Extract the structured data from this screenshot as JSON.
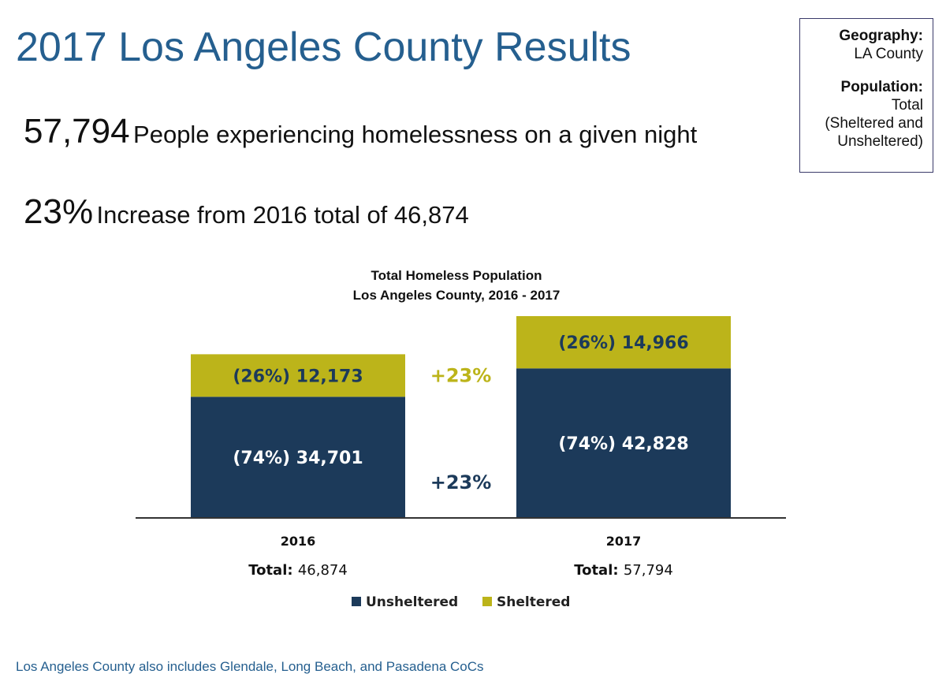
{
  "title": "2017 Los Angeles County Results",
  "stats": [
    {
      "value": "57,794",
      "text": "People experiencing homelessness on a given night"
    },
    {
      "value": "23%",
      "text": "Increase from 2016 total of 46,874"
    }
  ],
  "info_box": {
    "geography_label": "Geography:",
    "geography_value": "LA County",
    "population_label": "Population:",
    "population_value_lines": [
      "Total",
      "(Sheltered and",
      "Unsheltered)"
    ]
  },
  "footnote": "Los Angeles County also includes Glendale, Long Beach, and Pasadena CoCs",
  "colors": {
    "title": "#255f8f",
    "unsheltered": "#1c3a5a",
    "sheltered": "#bcb41a",
    "unsheltered_label_text": "#ffffff",
    "sheltered_label_text": "#1c3a5a"
  },
  "chart_data": {
    "type": "bar",
    "stacked": true,
    "title": "Total Homeless Population",
    "subtitle": "Los Angeles County, 2016 - 2017",
    "categories": [
      "2016",
      "2017"
    ],
    "series": [
      {
        "name": "Unsheltered",
        "values": [
          34701,
          42828
        ],
        "labels": [
          "(74%) 34,701",
          "(74%) 42,828"
        ]
      },
      {
        "name": "Sheltered",
        "values": [
          12173,
          14966
        ],
        "labels": [
          "(26%) 12,173",
          "(26%) 14,966"
        ]
      }
    ],
    "totals": [
      {
        "label": "Total:",
        "value": "46,874"
      },
      {
        "label": "Total:",
        "value": "57,794"
      }
    ],
    "annotations": [
      {
        "text": "+23%",
        "series": "Sheltered"
      },
      {
        "text": "+23%",
        "series": "Unsheltered"
      }
    ],
    "legend_position": "bottom",
    "ylim": [
      0,
      60000
    ]
  }
}
